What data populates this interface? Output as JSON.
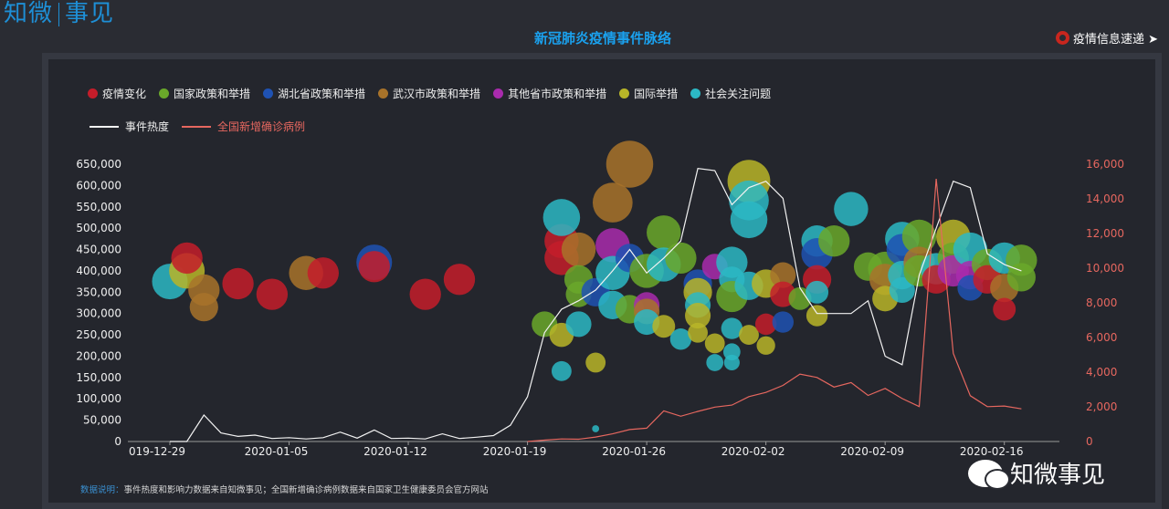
{
  "brand": {
    "left": "知微",
    "right": "事见"
  },
  "title": "新冠肺炎疫情事件脉络",
  "info_link": "疫情信息速递 ➤",
  "watermark": "知微事见",
  "note": {
    "label": "数据说明：",
    "text": "事件热度和影响力数据来自知微事见；全国新增确诊病例数据来自国家卫生健康委员会官方网站"
  },
  "legend": {
    "events": [
      {
        "name": "疫情变化",
        "color": "#c41d2a"
      },
      {
        "name": "国家政策和举措",
        "color": "#6aa82a"
      },
      {
        "name": "湖北省政策和举措",
        "color": "#1f52b3"
      },
      {
        "name": "武汉市政策和举措",
        "color": "#a8732a"
      },
      {
        "name": "其他省市政策和举措",
        "color": "#a92bad"
      },
      {
        "name": "国际举措",
        "color": "#b8b528"
      },
      {
        "name": "社会关注问题",
        "color": "#2cb8c4"
      }
    ],
    "lines": [
      {
        "name": "事件热度",
        "color": "#f2f2f2"
      },
      {
        "name": "全国新增确诊病例",
        "color": "#e6675f"
      }
    ]
  },
  "chart_data": {
    "type": "scatter",
    "x_start": "2019-12-29",
    "x_end": "2020-02-18",
    "xticks": [
      "019-12-29",
      "2020-01-05",
      "2020-01-12",
      "2020-01-19",
      "2020-01-26",
      "2020-02-02",
      "2020-02-09",
      "2020-02-16"
    ],
    "yleft": {
      "min": 0,
      "max": 650000,
      "ticks": [
        "0",
        "50,000",
        "100,000",
        "150,000",
        "200,000",
        "250,000",
        "300,000",
        "350,000",
        "400,000",
        "450,000",
        "500,000",
        "550,000",
        "600,000",
        "650,000"
      ]
    },
    "yright": {
      "min": 0,
      "max": 16000,
      "ticks": [
        "0",
        "2,000",
        "4,000",
        "6,000",
        "8,000",
        "10,000",
        "12,000",
        "14,000",
        "16,000"
      ]
    },
    "heat_series": {
      "name": "事件热度",
      "values": [
        [
          "2019-12-29",
          0
        ],
        [
          "2019-12-30",
          0
        ],
        [
          "2019-12-31",
          62000
        ],
        [
          "2020-01-01",
          20000
        ],
        [
          "2020-01-02",
          12000
        ],
        [
          "2020-01-03",
          15000
        ],
        [
          "2020-01-04",
          7000
        ],
        [
          "2020-01-05",
          9000
        ],
        [
          "2020-01-06",
          6000
        ],
        [
          "2020-01-07",
          9000
        ],
        [
          "2020-01-08",
          22000
        ],
        [
          "2020-01-09",
          8000
        ],
        [
          "2020-01-10",
          27000
        ],
        [
          "2020-01-11",
          7000
        ],
        [
          "2020-01-12",
          8000
        ],
        [
          "2020-01-13",
          6000
        ],
        [
          "2020-01-14",
          18000
        ],
        [
          "2020-01-15",
          7000
        ],
        [
          "2020-01-16",
          10000
        ],
        [
          "2020-01-17",
          14000
        ],
        [
          "2020-01-18",
          38000
        ],
        [
          "2020-01-19",
          105000
        ],
        [
          "2020-01-20",
          255000
        ],
        [
          "2020-01-21",
          310000
        ],
        [
          "2020-01-22",
          330000
        ],
        [
          "2020-01-23",
          355000
        ],
        [
          "2020-01-24",
          400000
        ],
        [
          "2020-01-25",
          450000
        ],
        [
          "2020-01-26",
          395000
        ],
        [
          "2020-01-27",
          430000
        ],
        [
          "2020-01-28",
          470000
        ],
        [
          "2020-01-29",
          640000
        ],
        [
          "2020-01-30",
          635000
        ],
        [
          "2020-01-31",
          555000
        ],
        [
          "2020-02-01",
          595000
        ],
        [
          "2020-02-02",
          610000
        ],
        [
          "2020-02-03",
          570000
        ],
        [
          "2020-02-04",
          360000
        ],
        [
          "2020-02-05",
          300000
        ],
        [
          "2020-02-06",
          300000
        ],
        [
          "2020-02-07",
          300000
        ],
        [
          "2020-02-08",
          330000
        ],
        [
          "2020-02-09",
          200000
        ],
        [
          "2020-02-10",
          180000
        ],
        [
          "2020-02-11",
          390000
        ],
        [
          "2020-02-12",
          500000
        ],
        [
          "2020-02-13",
          610000
        ],
        [
          "2020-02-14",
          595000
        ],
        [
          "2020-02-15",
          440000
        ],
        [
          "2020-02-16",
          415000
        ],
        [
          "2020-02-17",
          400000
        ]
      ]
    },
    "cases_series": {
      "name": "全国新增确诊病例",
      "values": [
        [
          "2020-01-19",
          0
        ],
        [
          "2020-01-20",
          77
        ],
        [
          "2020-01-21",
          149
        ],
        [
          "2020-01-22",
          131
        ],
        [
          "2020-01-23",
          259
        ],
        [
          "2020-01-24",
          444
        ],
        [
          "2020-01-25",
          688
        ],
        [
          "2020-01-26",
          769
        ],
        [
          "2020-01-27",
          1771
        ],
        [
          "2020-01-28",
          1459
        ],
        [
          "2020-01-29",
          1737
        ],
        [
          "2020-01-30",
          1982
        ],
        [
          "2020-01-31",
          2102
        ],
        [
          "2020-02-01",
          2590
        ],
        [
          "2020-02-02",
          2829
        ],
        [
          "2020-02-03",
          3235
        ],
        [
          "2020-02-04",
          3887
        ],
        [
          "2020-02-05",
          3694
        ],
        [
          "2020-02-06",
          3143
        ],
        [
          "2020-02-07",
          3399
        ],
        [
          "2020-02-08",
          2656
        ],
        [
          "2020-02-09",
          3062
        ],
        [
          "2020-02-10",
          2478
        ],
        [
          "2020-02-11",
          2015
        ],
        [
          "2020-02-12",
          15152
        ],
        [
          "2020-02-13",
          5090
        ],
        [
          "2020-02-14",
          2641
        ],
        [
          "2020-02-15",
          2009
        ],
        [
          "2020-02-16",
          2048
        ],
        [
          "2020-02-17",
          1886
        ]
      ]
    },
    "bubbles": [
      {
        "date": "2019-12-29",
        "value": 375000,
        "cat": 6,
        "size": 25
      },
      {
        "date": "2019-12-30",
        "value": 400000,
        "cat": 5,
        "size": 25
      },
      {
        "date": "2019-12-30",
        "value": 430000,
        "cat": 0,
        "size": 22
      },
      {
        "date": "2019-12-31",
        "value": 355000,
        "cat": 3,
        "size": 22
      },
      {
        "date": "2019-12-31",
        "value": 315000,
        "cat": 3,
        "size": 20
      },
      {
        "date": "2020-01-02",
        "value": 370000,
        "cat": 0,
        "size": 22
      },
      {
        "date": "2020-01-04",
        "value": 345000,
        "cat": 0,
        "size": 22
      },
      {
        "date": "2020-01-06",
        "value": 395000,
        "cat": 3,
        "size": 24
      },
      {
        "date": "2020-01-07",
        "value": 395000,
        "cat": 0,
        "size": 22
      },
      {
        "date": "2020-01-10",
        "value": 420000,
        "cat": 2,
        "size": 25
      },
      {
        "date": "2020-01-10",
        "value": 410000,
        "cat": 0,
        "size": 22
      },
      {
        "date": "2020-01-13",
        "value": 345000,
        "cat": 0,
        "size": 22
      },
      {
        "date": "2020-01-15",
        "value": 380000,
        "cat": 0,
        "size": 22
      },
      {
        "date": "2020-01-20",
        "value": 275000,
        "cat": 1,
        "size": 18
      },
      {
        "date": "2020-01-21",
        "value": 250000,
        "cat": 5,
        "size": 17
      },
      {
        "date": "2020-01-21",
        "value": 165000,
        "cat": 6,
        "size": 14
      },
      {
        "date": "2020-01-21",
        "value": 470000,
        "cat": 0,
        "size": 24
      },
      {
        "date": "2020-01-21",
        "value": 430000,
        "cat": 0,
        "size": 24
      },
      {
        "date": "2020-01-21",
        "value": 525000,
        "cat": 6,
        "size": 26
      },
      {
        "date": "2020-01-22",
        "value": 450000,
        "cat": 3,
        "size": 24
      },
      {
        "date": "2020-01-22",
        "value": 380000,
        "cat": 1,
        "size": 20
      },
      {
        "date": "2020-01-22",
        "value": 345000,
        "cat": 1,
        "size": 18
      },
      {
        "date": "2020-01-22",
        "value": 275000,
        "cat": 6,
        "size": 18
      },
      {
        "date": "2020-01-23",
        "value": 185000,
        "cat": 5,
        "size": 14
      },
      {
        "date": "2020-01-23",
        "value": 30000,
        "cat": 6,
        "size": 5
      },
      {
        "date": "2020-01-23",
        "value": 350000,
        "cat": 2,
        "size": 20
      },
      {
        "date": "2020-01-24",
        "value": 560000,
        "cat": 3,
        "size": 28
      },
      {
        "date": "2020-01-24",
        "value": 460000,
        "cat": 4,
        "size": 24
      },
      {
        "date": "2020-01-24",
        "value": 395000,
        "cat": 6,
        "size": 24
      },
      {
        "date": "2020-01-24",
        "value": 320000,
        "cat": 6,
        "size": 20
      },
      {
        "date": "2020-01-25",
        "value": 650000,
        "cat": 3,
        "size": 33
      },
      {
        "date": "2020-01-25",
        "value": 430000,
        "cat": 2,
        "size": 20
      },
      {
        "date": "2020-01-25",
        "value": 310000,
        "cat": 1,
        "size": 20
      },
      {
        "date": "2020-01-26",
        "value": 320000,
        "cat": 4,
        "size": 18
      },
      {
        "date": "2020-01-26",
        "value": 305000,
        "cat": 3,
        "size": 18
      },
      {
        "date": "2020-01-26",
        "value": 280000,
        "cat": 6,
        "size": 18
      },
      {
        "date": "2020-01-26",
        "value": 400000,
        "cat": 1,
        "size": 24
      },
      {
        "date": "2020-01-27",
        "value": 490000,
        "cat": 1,
        "size": 24
      },
      {
        "date": "2020-01-27",
        "value": 415000,
        "cat": 6,
        "size": 24
      },
      {
        "date": "2020-01-27",
        "value": 270000,
        "cat": 5,
        "size": 16
      },
      {
        "date": "2020-01-28",
        "value": 430000,
        "cat": 1,
        "size": 22
      },
      {
        "date": "2020-01-28",
        "value": 240000,
        "cat": 6,
        "size": 15
      },
      {
        "date": "2020-01-29",
        "value": 370000,
        "cat": 2,
        "size": 20
      },
      {
        "date": "2020-01-29",
        "value": 350000,
        "cat": 5,
        "size": 20
      },
      {
        "date": "2020-01-29",
        "value": 320000,
        "cat": 6,
        "size": 18
      },
      {
        "date": "2020-01-29",
        "value": 295000,
        "cat": 5,
        "size": 18
      },
      {
        "date": "2020-01-29",
        "value": 255000,
        "cat": 5,
        "size": 14
      },
      {
        "date": "2020-01-30",
        "value": 230000,
        "cat": 5,
        "size": 14
      },
      {
        "date": "2020-01-30",
        "value": 185000,
        "cat": 6,
        "size": 12
      },
      {
        "date": "2020-01-30",
        "value": 410000,
        "cat": 4,
        "size": 18
      },
      {
        "date": "2020-01-31",
        "value": 420000,
        "cat": 6,
        "size": 22
      },
      {
        "date": "2020-01-31",
        "value": 380000,
        "cat": 6,
        "size": 18
      },
      {
        "date": "2020-01-31",
        "value": 340000,
        "cat": 1,
        "size": 22
      },
      {
        "date": "2020-01-31",
        "value": 265000,
        "cat": 6,
        "size": 15
      },
      {
        "date": "2020-01-31",
        "value": 210000,
        "cat": 6,
        "size": 12
      },
      {
        "date": "2020-01-31",
        "value": 185000,
        "cat": 6,
        "size": 11
      },
      {
        "date": "2020-02-01",
        "value": 610000,
        "cat": 5,
        "size": 30
      },
      {
        "date": "2020-02-01",
        "value": 565000,
        "cat": 6,
        "size": 28
      },
      {
        "date": "2020-02-01",
        "value": 520000,
        "cat": 6,
        "size": 26
      },
      {
        "date": "2020-02-01",
        "value": 365000,
        "cat": 6,
        "size": 20
      },
      {
        "date": "2020-02-01",
        "value": 250000,
        "cat": 5,
        "size": 14
      },
      {
        "date": "2020-02-02",
        "value": 225000,
        "cat": 5,
        "size": 13
      },
      {
        "date": "2020-02-02",
        "value": 275000,
        "cat": 0,
        "size": 15
      },
      {
        "date": "2020-02-02",
        "value": 370000,
        "cat": 5,
        "size": 20
      },
      {
        "date": "2020-02-03",
        "value": 390000,
        "cat": 3,
        "size": 18
      },
      {
        "date": "2020-02-03",
        "value": 345000,
        "cat": 0,
        "size": 18
      },
      {
        "date": "2020-02-03",
        "value": 280000,
        "cat": 2,
        "size": 15
      },
      {
        "date": "2020-02-04",
        "value": 335000,
        "cat": 1,
        "size": 16
      },
      {
        "date": "2020-02-05",
        "value": 470000,
        "cat": 6,
        "size": 22
      },
      {
        "date": "2020-02-05",
        "value": 440000,
        "cat": 2,
        "size": 22
      },
      {
        "date": "2020-02-05",
        "value": 380000,
        "cat": 0,
        "size": 20
      },
      {
        "date": "2020-02-05",
        "value": 350000,
        "cat": 6,
        "size": 16
      },
      {
        "date": "2020-02-05",
        "value": 295000,
        "cat": 5,
        "size": 15
      },
      {
        "date": "2020-02-06",
        "value": 470000,
        "cat": 1,
        "size": 22
      },
      {
        "date": "2020-02-07",
        "value": 545000,
        "cat": 6,
        "size": 24
      },
      {
        "date": "2020-02-08",
        "value": 410000,
        "cat": 1,
        "size": 20
      },
      {
        "date": "2020-02-09",
        "value": 405000,
        "cat": 1,
        "size": 24
      },
      {
        "date": "2020-02-09",
        "value": 380000,
        "cat": 3,
        "size": 22
      },
      {
        "date": "2020-02-09",
        "value": 335000,
        "cat": 5,
        "size": 18
      },
      {
        "date": "2020-02-10",
        "value": 475000,
        "cat": 6,
        "size": 24
      },
      {
        "date": "2020-02-10",
        "value": 450000,
        "cat": 2,
        "size": 22
      },
      {
        "date": "2020-02-10",
        "value": 390000,
        "cat": 6,
        "size": 20
      },
      {
        "date": "2020-02-10",
        "value": 355000,
        "cat": 6,
        "size": 18
      },
      {
        "date": "2020-02-11",
        "value": 480000,
        "cat": 1,
        "size": 24
      },
      {
        "date": "2020-02-11",
        "value": 420000,
        "cat": 3,
        "size": 22
      },
      {
        "date": "2020-02-11",
        "value": 400000,
        "cat": 1,
        "size": 22
      },
      {
        "date": "2020-02-12",
        "value": 405000,
        "cat": 6,
        "size": 22
      },
      {
        "date": "2020-02-12",
        "value": 380000,
        "cat": 0,
        "size": 20
      },
      {
        "date": "2020-02-13",
        "value": 480000,
        "cat": 5,
        "size": 24
      },
      {
        "date": "2020-02-13",
        "value": 430000,
        "cat": 1,
        "size": 22
      },
      {
        "date": "2020-02-13",
        "value": 400000,
        "cat": 4,
        "size": 22
      },
      {
        "date": "2020-02-14",
        "value": 450000,
        "cat": 6,
        "size": 24
      },
      {
        "date": "2020-02-14",
        "value": 390000,
        "cat": 4,
        "size": 20
      },
      {
        "date": "2020-02-14",
        "value": 360000,
        "cat": 2,
        "size": 18
      },
      {
        "date": "2020-02-15",
        "value": 415000,
        "cat": 1,
        "size": 22
      },
      {
        "date": "2020-02-15",
        "value": 380000,
        "cat": 0,
        "size": 20
      },
      {
        "date": "2020-02-16",
        "value": 430000,
        "cat": 6,
        "size": 22
      },
      {
        "date": "2020-02-16",
        "value": 360000,
        "cat": 3,
        "size": 20
      },
      {
        "date": "2020-02-16",
        "value": 310000,
        "cat": 0,
        "size": 16
      },
      {
        "date": "2020-02-17",
        "value": 425000,
        "cat": 1,
        "size": 22
      },
      {
        "date": "2020-02-17",
        "value": 385000,
        "cat": 1,
        "size": 20
      }
    ]
  }
}
